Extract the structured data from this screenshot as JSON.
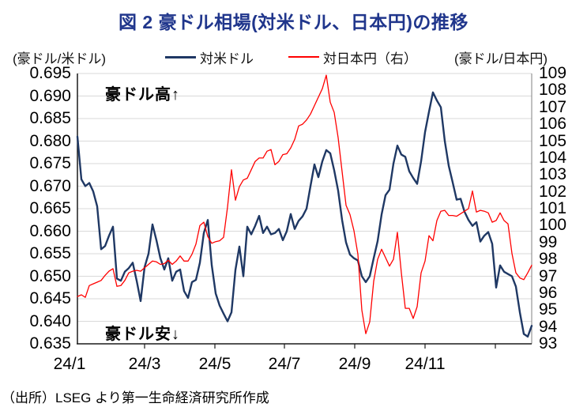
{
  "title": "図 2  豪ドル相場(対米ドル、日本円)の推移",
  "title_color": "#20368c",
  "axis_header_left": "(豪ドル/米ドル)",
  "axis_header_right": "(豪ドル/日本円)",
  "legend": {
    "usd": {
      "label": "対米ドル",
      "color": "#1f3864"
    },
    "jpy": {
      "label": "対日本円（右）",
      "color": "#ff0000"
    }
  },
  "annotations": {
    "high": "豪ドル高↑",
    "low": "豪ドル安↓"
  },
  "source": "（出所）LSEG より第一生命経済研究所作成",
  "chart_data": {
    "type": "line",
    "grid": "horizontal",
    "grid_color": "#d9d9d9",
    "x_tick_labels": [
      "24/1",
      "24/3",
      "24/5",
      "24/7",
      "24/9",
      "24/11"
    ],
    "left_axis": {
      "label": "(豪ドル/米ドル)",
      "min": 0.635,
      "max": 0.695,
      "ticks": [
        "0.695",
        "0.690",
        "0.685",
        "0.680",
        "0.675",
        "0.670",
        "0.665",
        "0.660",
        "0.655",
        "0.650",
        "0.645",
        "0.640",
        "0.635"
      ]
    },
    "right_axis": {
      "label": "(豪ドル/日本円)",
      "min": 93,
      "max": 109,
      "ticks": [
        "109",
        "108",
        "107",
        "106",
        "105",
        "104",
        "103",
        "102",
        "101",
        "100",
        "99",
        "98",
        "97",
        "96",
        "95",
        "94",
        "93"
      ]
    },
    "series": [
      {
        "name": "対米ドル",
        "axis": "left",
        "color": "#1f3864",
        "width": 2.4,
        "values": [
          0.681,
          0.6715,
          0.67,
          0.6707,
          0.6688,
          0.6655,
          0.656,
          0.6567,
          0.659,
          0.661,
          0.6495,
          0.649,
          0.651,
          0.6518,
          0.653,
          0.649,
          0.6445,
          0.652,
          0.655,
          0.6615,
          0.658,
          0.654,
          0.6515,
          0.654,
          0.649,
          0.651,
          0.6515,
          0.6467,
          0.6452,
          0.6487,
          0.6492,
          0.653,
          0.6596,
          0.6625,
          0.6525,
          0.6462,
          0.6435,
          0.6417,
          0.64,
          0.642,
          0.6514,
          0.6566,
          0.65,
          0.661,
          0.6593,
          0.6612,
          0.6634,
          0.6596,
          0.661,
          0.6593,
          0.6596,
          0.6605,
          0.658,
          0.66,
          0.6638,
          0.6605,
          0.6623,
          0.6633,
          0.665,
          0.67,
          0.6748,
          0.672,
          0.6755,
          0.678,
          0.6773,
          0.6735,
          0.669,
          0.6625,
          0.6575,
          0.6548,
          0.654,
          0.6535,
          0.65,
          0.6487,
          0.65,
          0.654,
          0.6578,
          0.6637,
          0.668,
          0.6692,
          0.675,
          0.679,
          0.677,
          0.6765,
          0.6733,
          0.6718,
          0.6705,
          0.6755,
          0.682,
          0.6865,
          0.6908,
          0.689,
          0.6875,
          0.68,
          0.6745,
          0.6708,
          0.667,
          0.6672,
          0.6643,
          0.6625,
          0.6612,
          0.662,
          0.6577,
          0.659,
          0.6598,
          0.6572,
          0.6475,
          0.6524,
          0.651,
          0.6505,
          0.65,
          0.6477,
          0.642,
          0.6372,
          0.6366,
          0.639
        ]
      },
      {
        "name": "対日本円（右）",
        "axis": "right",
        "color": "#ff0000",
        "width": 1.3,
        "values": [
          95.8,
          95.9,
          95.75,
          96.45,
          96.55,
          96.65,
          96.75,
          97.05,
          97.3,
          97.45,
          96.4,
          96.45,
          96.75,
          97.2,
          97.3,
          97.35,
          97.3,
          97.5,
          97.7,
          97.9,
          97.85,
          97.7,
          97.75,
          97.95,
          97.7,
          97.9,
          98.2,
          97.9,
          97.9,
          98.3,
          98.9,
          100.0,
          100.2,
          99.35,
          98.95,
          99.05,
          99.1,
          99.3,
          101.1,
          103.3,
          101.5,
          102.3,
          102.7,
          102.8,
          103.3,
          103.8,
          104.0,
          104.0,
          104.4,
          104.5,
          103.6,
          103.8,
          104.2,
          104.25,
          104.6,
          105.1,
          105.9,
          106.0,
          106.25,
          106.6,
          107.1,
          107.6,
          108.1,
          108.9,
          107.3,
          106.7,
          105.2,
          103.2,
          101.2,
          100.65,
          99.7,
          98.3,
          95.0,
          93.6,
          94.3,
          96.7,
          98.0,
          98.6,
          98.1,
          97.6,
          98.0,
          99.6,
          97.2,
          95.1,
          95.1,
          94.5,
          95.2,
          97.2,
          97.9,
          99.4,
          99.1,
          100.3,
          100.85,
          100.9,
          100.6,
          100.6,
          100.55,
          100.7,
          100.85,
          101.0,
          102.05,
          100.8,
          100.9,
          100.85,
          100.75,
          100.2,
          100.3,
          100.75,
          100.3,
          100.1,
          98.35,
          97.2,
          96.9,
          96.8,
          97.2,
          97.65
        ]
      }
    ]
  }
}
